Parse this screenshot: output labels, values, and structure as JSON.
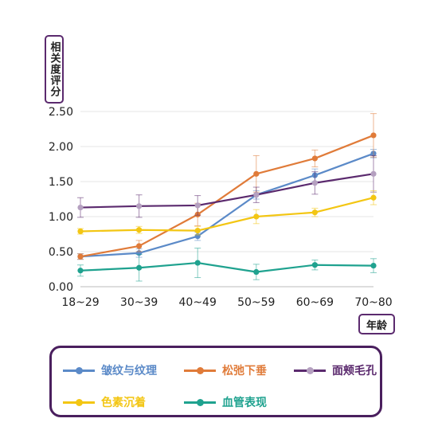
{
  "chart_data": {
    "type": "line",
    "ylabel": "相关度评分",
    "xlabel": "年龄",
    "categories": [
      "18~29",
      "30~39",
      "40~49",
      "50~59",
      "60~69",
      "70~80"
    ],
    "y_ticks": [
      "0.00",
      "0.50",
      "1.00",
      "1.50",
      "2.00",
      "2.50"
    ],
    "ylim": [
      0,
      2.5
    ],
    "grid": true,
    "legend_position": "bottom",
    "series": [
      {
        "name": "皱纹与纹理",
        "color": "#5b8ac8",
        "values": [
          0.43,
          0.48,
          0.72,
          1.31,
          1.59,
          1.9
        ],
        "errors": [
          0.04,
          0.06,
          0.06,
          0.06,
          0.09,
          0.06
        ]
      },
      {
        "name": "松弛下垂",
        "color": "#e07b39",
        "values": [
          0.43,
          0.58,
          1.03,
          1.61,
          1.83,
          2.16
        ],
        "errors": [
          0.04,
          0.08,
          0.16,
          0.26,
          0.12,
          0.31
        ]
      },
      {
        "name": "面颊毛孔",
        "color": "#5b2a6e",
        "values": [
          1.13,
          1.15,
          1.16,
          1.31,
          1.48,
          1.61
        ],
        "errors": [
          0.14,
          0.16,
          0.14,
          0.11,
          0.16,
          0.26
        ]
      },
      {
        "name": "色素沉着",
        "color": "#f3c613",
        "values": [
          0.79,
          0.81,
          0.8,
          1.0,
          1.06,
          1.27
        ],
        "errors": [
          0.04,
          0.05,
          0.06,
          0.1,
          0.06,
          0.1
        ]
      },
      {
        "name": "血管表现",
        "color": "#1fa28f",
        "values": [
          0.23,
          0.27,
          0.34,
          0.21,
          0.31,
          0.3
        ],
        "errors": [
          0.08,
          0.19,
          0.21,
          0.11,
          0.07,
          0.1
        ]
      }
    ]
  }
}
